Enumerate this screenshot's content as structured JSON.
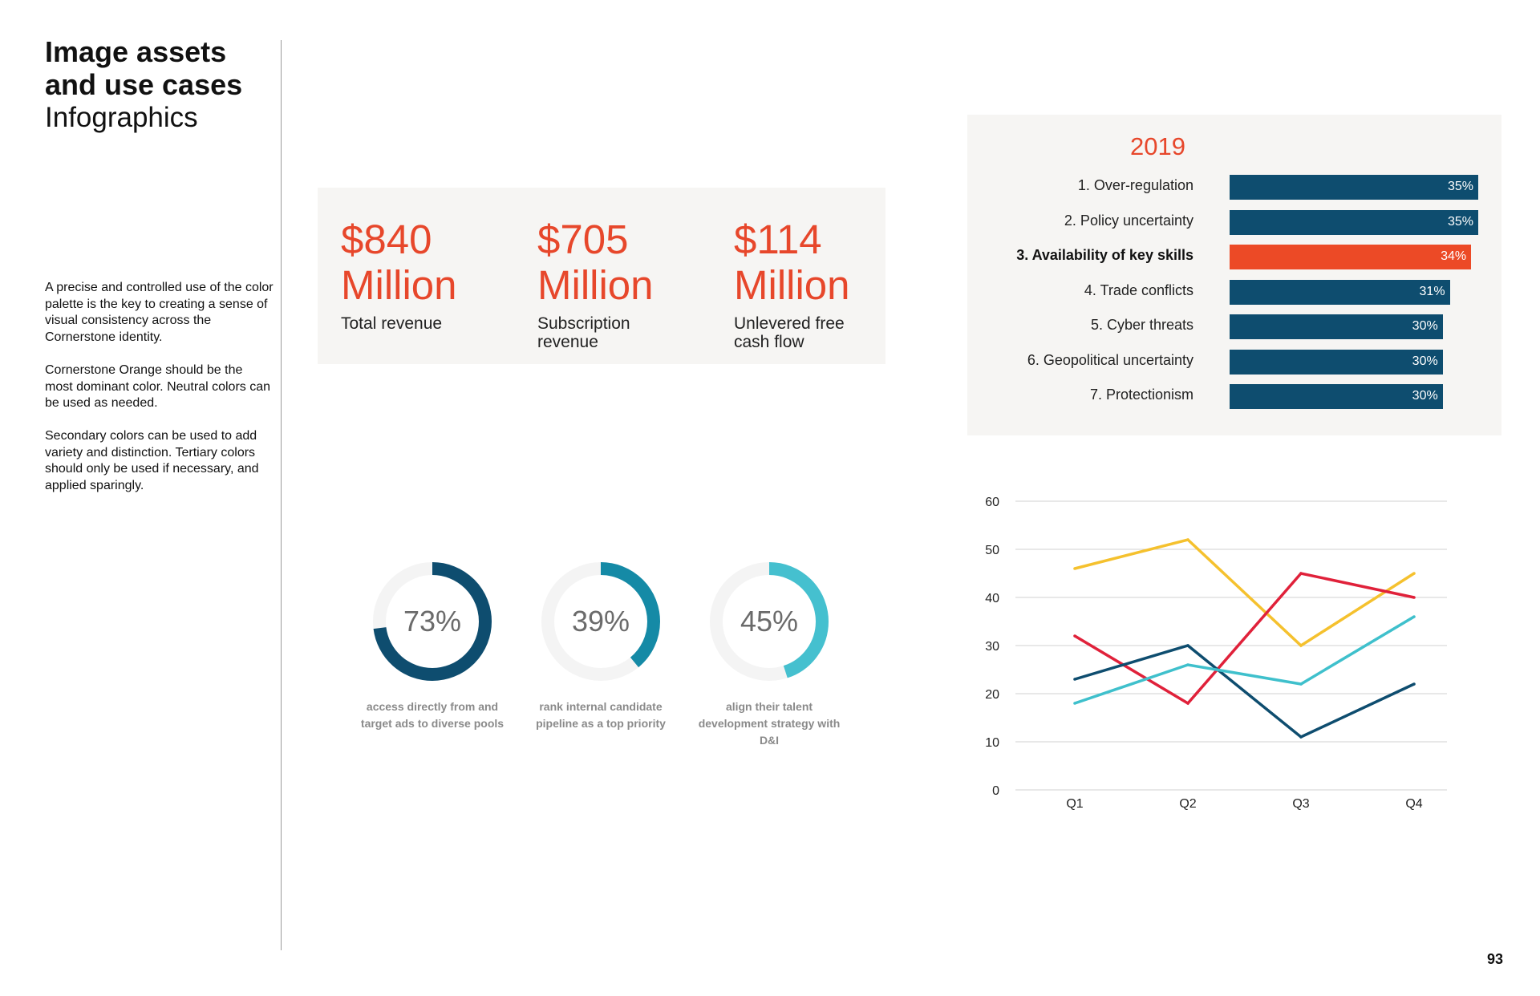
{
  "sidebar": {
    "title_bold": "Image assets and use cases",
    "title_light": "Infographics",
    "paragraphs": [
      "A precise and controlled use of the color palette is the key to creating a sense of visual consistency across the Cornerstone identity.",
      "Cornerstone Orange should be the most dominant color. Neutral colors can be used as needed.",
      "Secondary colors can be used to add variety and distinction. Tertiary colors should only be used if necessary, and applied sparingly."
    ]
  },
  "revenue": [
    {
      "value_line1": "$840",
      "value_line2": "Million",
      "label": "Total revenue"
    },
    {
      "value_line1": "$705",
      "value_line2": "Million",
      "label": "Subscription revenue"
    },
    {
      "value_line1": "$114",
      "value_line2": "Million",
      "label": "Unlevered free cash flow"
    }
  ],
  "donuts": [
    {
      "percent": 73,
      "label": "73%",
      "caption": "access directly from and target ads to diverse pools",
      "color": "#0e4d6f"
    },
    {
      "percent": 39,
      "label": "39%",
      "caption": "rank internal candidate pipeline as a top priority",
      "color": "#158aa6"
    },
    {
      "percent": 45,
      "label": "45%",
      "caption": "align their talent development strategy with D&I",
      "color": "#45c0cf"
    }
  ],
  "bar_chart": {
    "year": "2019",
    "rows": [
      {
        "label": "1. Over-regulation",
        "value": 35,
        "value_label": "35%",
        "highlight": false
      },
      {
        "label": "2. Policy uncertainty",
        "value": 35,
        "value_label": "35%",
        "highlight": false
      },
      {
        "label": "3. Availability of key skills",
        "value": 34,
        "value_label": "34%",
        "highlight": true
      },
      {
        "label": "4. Trade conflicts",
        "value": 31,
        "value_label": "31%",
        "highlight": false
      },
      {
        "label": "5. Cyber threats",
        "value": 30,
        "value_label": "30%",
        "highlight": false
      },
      {
        "label": "6. Geopolitical uncertainty",
        "value": 30,
        "value_label": "30%",
        "highlight": false
      },
      {
        "label": "7. Protectionism",
        "value": 30,
        "value_label": "30%",
        "highlight": false
      }
    ],
    "colors": {
      "default": "#0e4d6f",
      "highlight": "#ec4a26"
    }
  },
  "chart_data": {
    "type": "line",
    "categories": [
      "Q1",
      "Q2",
      "Q3",
      "Q4"
    ],
    "ylim": [
      0,
      60
    ],
    "yticks": [
      0,
      10,
      20,
      30,
      40,
      50,
      60
    ],
    "grid": true,
    "series": [
      {
        "color": "#f5c12e",
        "values": [
          46,
          52,
          30,
          45
        ]
      },
      {
        "color": "#e0213a",
        "values": [
          32,
          18,
          45,
          40
        ]
      },
      {
        "color": "#0e4d6f",
        "values": [
          23,
          30,
          11,
          22
        ]
      },
      {
        "color": "#3fc0cc",
        "values": [
          18,
          26,
          22,
          36
        ]
      }
    ]
  },
  "page_number": "93"
}
